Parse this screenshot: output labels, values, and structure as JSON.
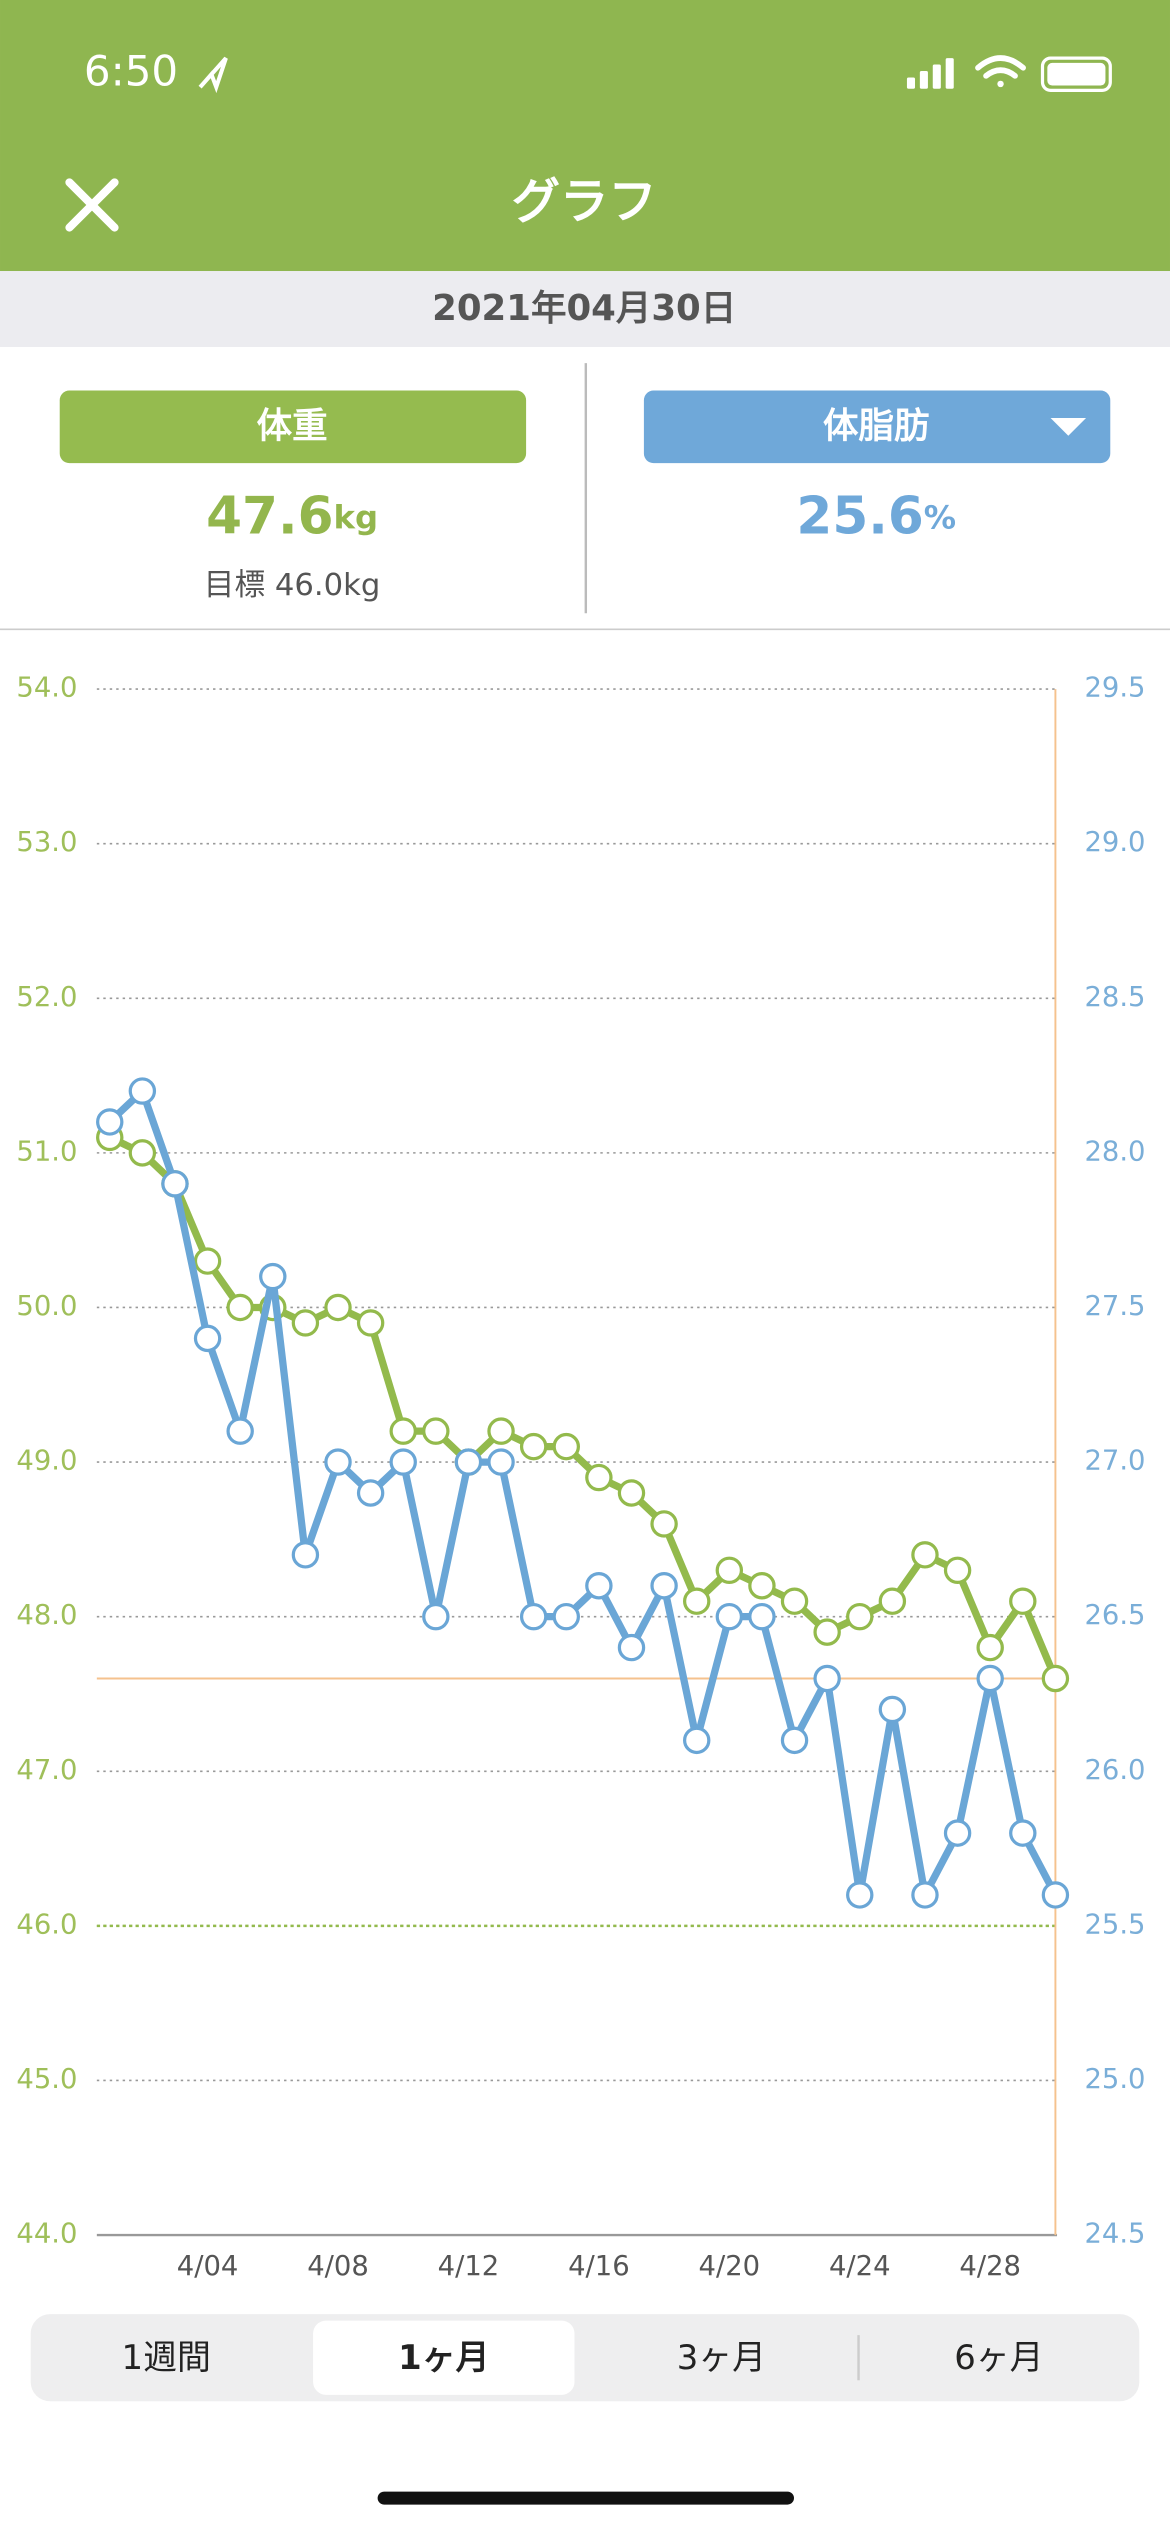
{
  "status": {
    "time": "6:50"
  },
  "nav": {
    "title": "グラフ"
  },
  "date": "2021年04月30日",
  "summary": {
    "weight": {
      "button": "体重",
      "value": "47.6",
      "unit": "kg",
      "goal_label": "目標",
      "goal": "46.0kg"
    },
    "fat": {
      "button": "体脂肪",
      "value": "25.6",
      "unit": "%"
    }
  },
  "tabs": [
    "1週間",
    "1ヶ月",
    "3ヶ月",
    "6ヶ月"
  ],
  "chart_data": {
    "type": "line",
    "categories": [
      null,
      null,
      null,
      "4/04",
      null,
      null,
      null,
      "4/08",
      null,
      null,
      null,
      "4/12",
      null,
      null,
      null,
      "4/16",
      null,
      null,
      null,
      "4/20",
      null,
      null,
      null,
      "4/24",
      null,
      null,
      null,
      "4/28",
      null,
      null
    ],
    "series": [
      {
        "name": "体重",
        "color": "#93ba4c",
        "values": [
          51.1,
          51.0,
          50.8,
          50.3,
          50.0,
          50.0,
          49.9,
          50.0,
          49.9,
          49.2,
          49.2,
          49.0,
          49.2,
          49.1,
          49.1,
          48.9,
          48.8,
          48.6,
          48.1,
          48.3,
          48.2,
          48.1,
          47.9,
          48.0,
          48.1,
          48.4,
          48.3,
          47.8,
          48.1,
          47.6
        ]
      },
      {
        "name": "体脂肪",
        "color": "#6aa6d6",
        "axis": "y2",
        "values": [
          28.1,
          28.2,
          27.9,
          27.4,
          27.1,
          27.6,
          26.7,
          27.0,
          26.9,
          27.0,
          26.5,
          27.0,
          27.0,
          26.5,
          26.5,
          26.6,
          26.4,
          26.6,
          26.1,
          26.5,
          26.5,
          26.1,
          26.3,
          25.6,
          26.2,
          25.6,
          25.8,
          26.3,
          25.8,
          25.6
        ]
      }
    ],
    "ylim": [
      44,
      54
    ],
    "yticks": [
      {
        "value": 44,
        "label": "44.0"
      },
      {
        "value": 45,
        "label": "45.0"
      },
      {
        "value": 46,
        "label": "46.0"
      },
      {
        "value": 47,
        "label": "47.0"
      },
      {
        "value": 48,
        "label": "48.0"
      },
      {
        "value": 49,
        "label": "49.0"
      },
      {
        "value": 50,
        "label": "50.0"
      },
      {
        "value": 51,
        "label": "51.0"
      },
      {
        "value": 52,
        "label": "52.0"
      },
      {
        "value": 53,
        "label": "53.0"
      },
      {
        "value": 54,
        "label": "54.0"
      }
    ],
    "y2lim": [
      24.5,
      29.5
    ],
    "y2ticks": [
      24.5,
      {
        "value": 25,
        "label": "25.0"
      },
      25.5,
      {
        "value": 26,
        "label": "26.0"
      },
      26.5,
      {
        "value": 27,
        "label": "27.0"
      },
      27.5,
      {
        "value": 28,
        "label": "28.0"
      },
      28.5,
      {
        "value": 29,
        "label": "29.0"
      },
      29.5
    ],
    "target": 46,
    "grid": true
  }
}
